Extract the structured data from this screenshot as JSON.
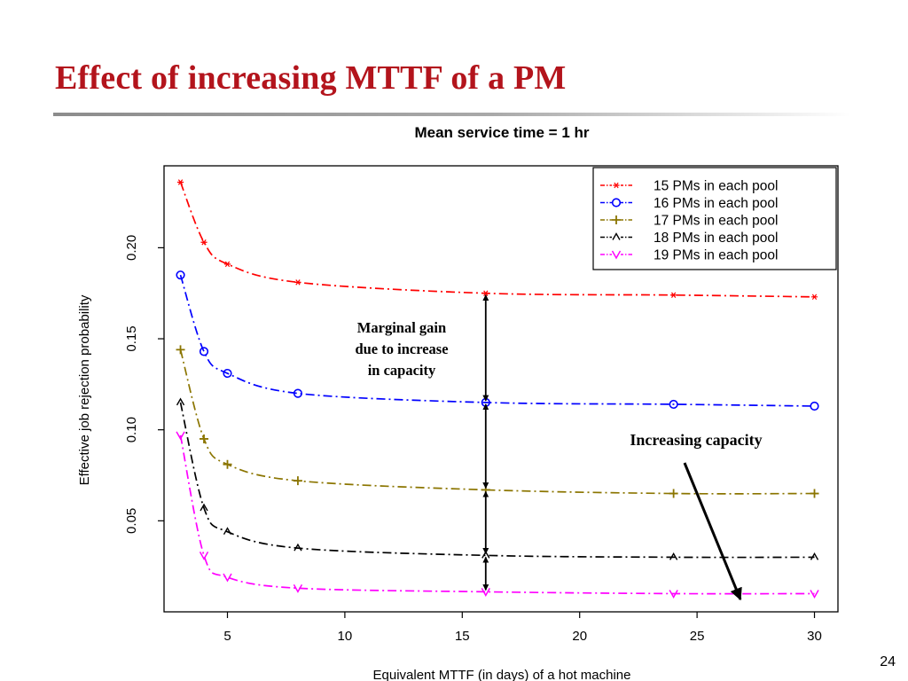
{
  "slide": {
    "title": "Effect of increasing MTTF of a PM",
    "page_number": "24"
  },
  "annotations": {
    "marginal_gain_lines": [
      "Marginal gain",
      "due to increase",
      "in capacity"
    ],
    "increasing_capacity": "Increasing capacity"
  },
  "chart_data": {
    "type": "line",
    "title": "Mean service time = 1 hr",
    "xlabel": "Equivalent MTTF (in days) of a hot machine",
    "ylabel": "Effective job rejection probability",
    "xlim": [
      2.3,
      31
    ],
    "ylim": [
      0.0,
      0.245
    ],
    "xticks": [
      5,
      10,
      15,
      20,
      25,
      30
    ],
    "yticks": [
      0.05,
      0.1,
      0.15,
      0.2
    ],
    "xtick_labels": [
      "5",
      "10",
      "15",
      "20",
      "25",
      "30"
    ],
    "ytick_labels": [
      "0.05",
      "0.10",
      "0.15",
      "0.20"
    ],
    "grid": false,
    "legend_position": "top-right",
    "x": [
      3,
      4,
      5,
      8,
      16,
      24,
      30
    ],
    "series": [
      {
        "name": "15 PMs in each pool",
        "marker": "*",
        "color": "#ff0000",
        "values": [
          0.236,
          0.203,
          0.191,
          0.181,
          0.175,
          0.174,
          0.173
        ]
      },
      {
        "name": "16 PMs in each pool",
        "marker": "o",
        "color": "#0000ff",
        "values": [
          0.185,
          0.143,
          0.131,
          0.12,
          0.115,
          0.114,
          0.113
        ]
      },
      {
        "name": "17 PMs in each pool",
        "marker": "+",
        "color": "#8b7500",
        "values": [
          0.144,
          0.095,
          0.081,
          0.072,
          0.067,
          0.065,
          0.065
        ]
      },
      {
        "name": "18 PMs in each pool",
        "marker": "^",
        "color": "#000000",
        "values": [
          0.115,
          0.057,
          0.044,
          0.035,
          0.031,
          0.03,
          0.03
        ]
      },
      {
        "name": "19 PMs in each pool",
        "marker": "v",
        "color": "#ff00ff",
        "values": [
          0.097,
          0.031,
          0.019,
          0.013,
          0.011,
          0.01,
          0.01
        ]
      }
    ]
  }
}
